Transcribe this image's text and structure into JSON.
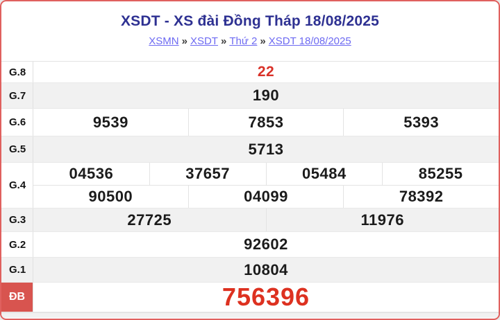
{
  "page": {
    "title": "XSDT - XS đài Đồng Tháp 18/08/2025",
    "breadcrumb": {
      "separator": "»",
      "items": [
        {
          "label": "XSMN"
        },
        {
          "label": "XSDT"
        },
        {
          "label": "Thứ 2"
        },
        {
          "label": "XSDT 18/08/2025"
        }
      ]
    }
  },
  "results": {
    "rows": [
      {
        "label": "G.8",
        "values": [
          "22"
        ]
      },
      {
        "label": "G.7",
        "values": [
          "190"
        ]
      },
      {
        "label": "G.6",
        "values": [
          "9539",
          "7853",
          "5393"
        ]
      },
      {
        "label": "G.5",
        "values": [
          "5713"
        ]
      },
      {
        "label": "G.4",
        "lines": [
          [
            "04536",
            "37657",
            "05484",
            "85255"
          ],
          [
            "90500",
            "04099",
            "78392"
          ]
        ]
      },
      {
        "label": "G.3",
        "values": [
          "27725",
          "11976"
        ]
      },
      {
        "label": "G.2",
        "values": [
          "92602"
        ]
      },
      {
        "label": "G.1",
        "values": [
          "10804"
        ]
      },
      {
        "label": "ĐB",
        "values": [
          "756396"
        ]
      }
    ]
  },
  "colors": {
    "card_border": "#e0605e",
    "title": "#2e3192",
    "link": "#6d6af2",
    "row_alt_bg": "#f1f1f1",
    "special_label_bg": "#d8544f",
    "highlight_red": "#d93128",
    "jackpot_red": "#dd3120"
  }
}
